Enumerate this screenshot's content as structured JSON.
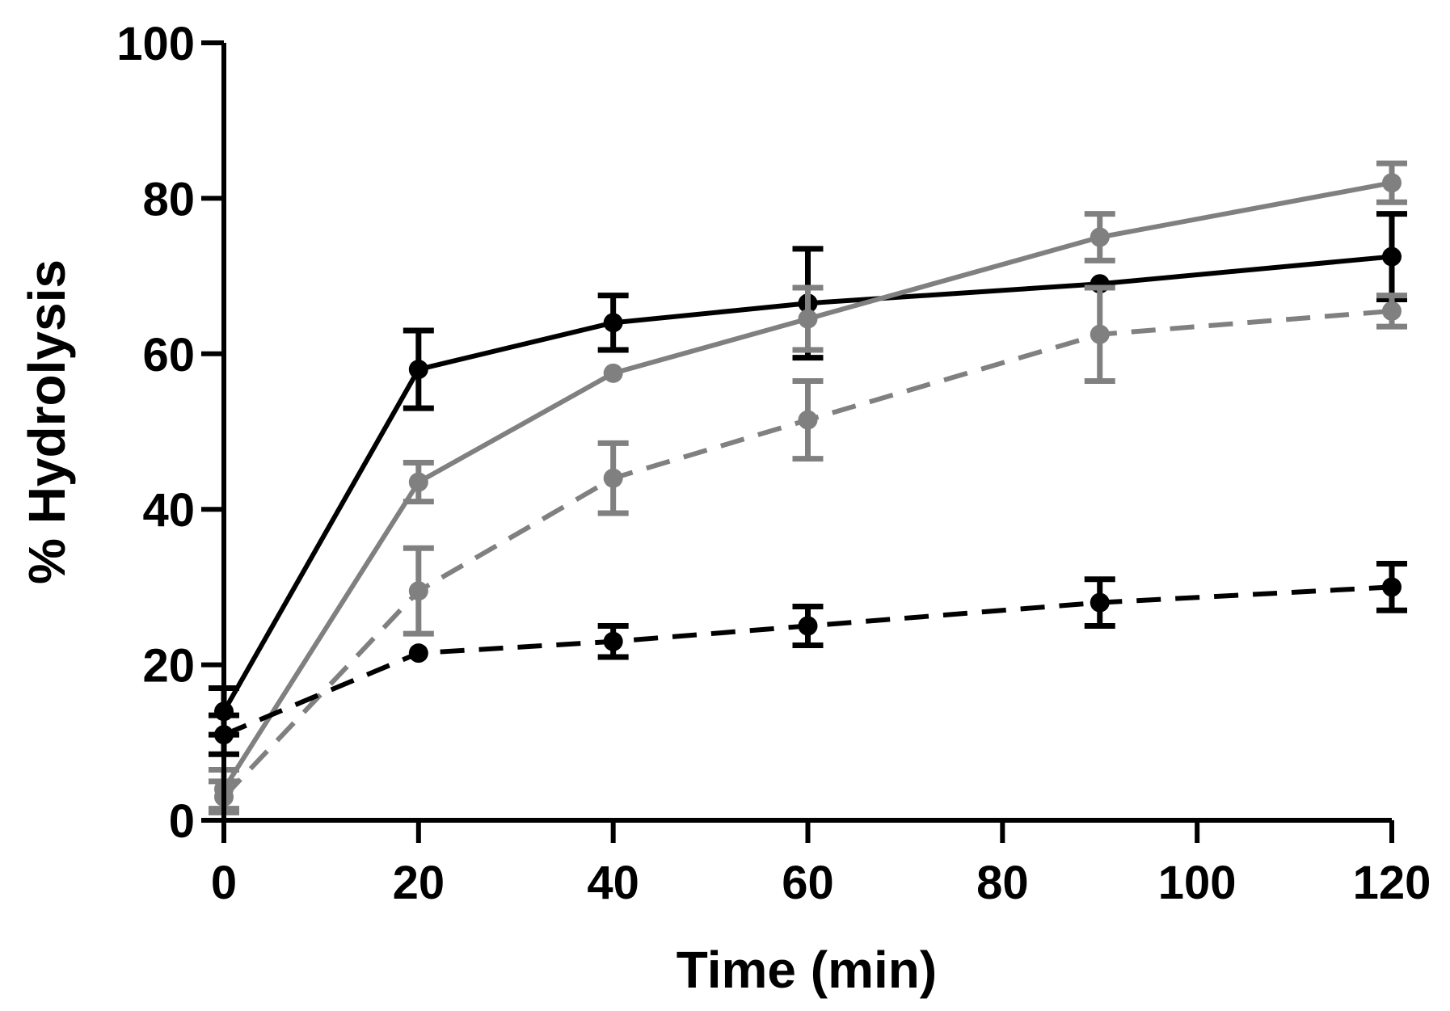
{
  "chart_data": {
    "type": "line",
    "title": "",
    "xlabel": "Time (min)",
    "ylabel": "% Hydrolysis",
    "xlim": [
      0,
      120
    ],
    "ylim": [
      0,
      100
    ],
    "xticks": [
      0,
      20,
      40,
      60,
      80,
      100,
      120
    ],
    "yticks": [
      0,
      20,
      40,
      60,
      80,
      100
    ],
    "grid": false,
    "legend": "none",
    "x": [
      0,
      20,
      40,
      60,
      90,
      120
    ],
    "series": [
      {
        "name": "black-solid",
        "color": "#000000",
        "dashed": false,
        "values": [
          14,
          58,
          64,
          66.5,
          69,
          72.5
        ],
        "errors": [
          3,
          5,
          3.5,
          7,
          0,
          5.5
        ]
      },
      {
        "name": "gray-solid",
        "color": "#808080",
        "dashed": false,
        "values": [
          4,
          43.5,
          57.5,
          64.5,
          75,
          82
        ],
        "errors": [
          2.5,
          2.5,
          0,
          4,
          3,
          2.5
        ]
      },
      {
        "name": "gray-dashed",
        "color": "#808080",
        "dashed": true,
        "values": [
          3,
          29.5,
          44,
          51.5,
          62.5,
          65.5
        ],
        "errors": [
          2,
          5.5,
          4.5,
          5,
          6,
          2
        ]
      },
      {
        "name": "black-dashed",
        "color": "#000000",
        "dashed": true,
        "values": [
          11,
          21.5,
          23,
          25,
          28,
          30
        ],
        "errors": [
          2.5,
          0,
          2,
          2.5,
          3,
          3
        ]
      }
    ]
  }
}
